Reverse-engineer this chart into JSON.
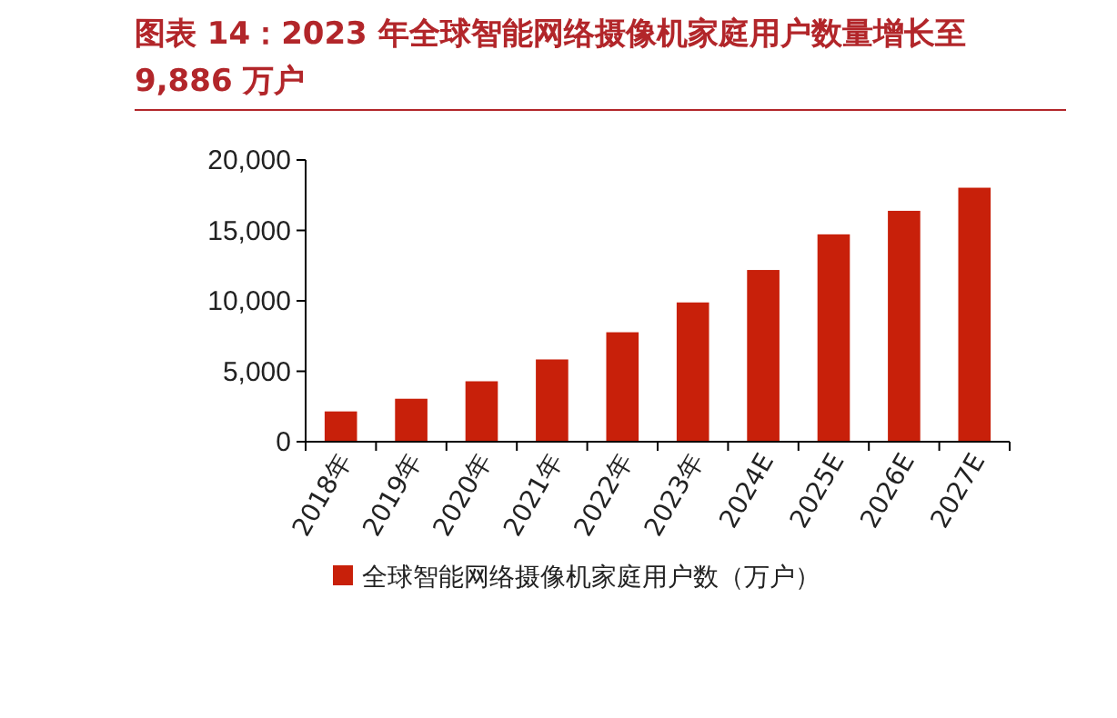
{
  "chart_data": {
    "type": "bar",
    "title": "图表 14：2023 年全球智能网络摄像机家庭用户数量增长至 9,886 万户",
    "categories": [
      "2018年",
      "2019年",
      "2020年",
      "2021年",
      "2022年",
      "2023年",
      "2024E",
      "2025E",
      "2026E",
      "2027E"
    ],
    "series": [
      {
        "name": "全球智能网络摄像机家庭用户数（万户）",
        "color": "#c8200a",
        "values": [
          2150,
          3050,
          4290,
          5840,
          7770,
          9886,
          12190,
          14720,
          16390,
          18030
        ]
      }
    ],
    "ylim": [
      0,
      20000
    ],
    "yticks": [
      {
        "value": 0,
        "label": "0"
      },
      {
        "value": 5000,
        "label": "5,000"
      },
      {
        "value": 10000,
        "label": "10,000"
      },
      {
        "value": 15000,
        "label": "15,000"
      },
      {
        "value": 20000,
        "label": "20,000"
      }
    ],
    "grid": false,
    "legend": "bottom"
  }
}
